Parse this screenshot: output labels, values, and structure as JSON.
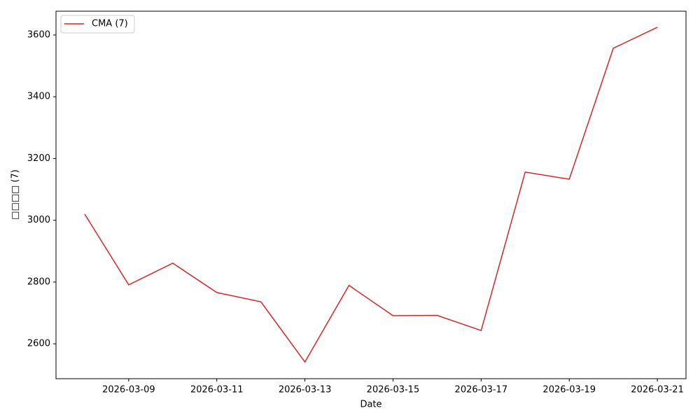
{
  "chart_data": {
    "type": "line",
    "x_label": "Date",
    "y_label": "□□□□ (7)",
    "x": [
      "2026-03-08",
      "2026-03-09",
      "2026-03-10",
      "2026-03-11",
      "2026-03-12",
      "2026-03-13",
      "2026-03-14",
      "2026-03-15",
      "2026-03-16",
      "2026-03-17",
      "2026-03-18",
      "2026-03-19",
      "2026-03-20",
      "2026-03-21"
    ],
    "series": [
      {
        "name": "CMA (7)",
        "color": "#d62728",
        "values": [
          3020,
          2791,
          2861,
          2766,
          2736,
          2541,
          2789,
          2691,
          2692,
          2643,
          3156,
          3133,
          3557,
          3625
        ]
      }
    ],
    "xlim": [
      "2026-03-07T08:24",
      "2026-03-21T15:36"
    ],
    "xticks": [
      "2026-03-09",
      "2026-03-11",
      "2026-03-13",
      "2026-03-15",
      "2026-03-17",
      "2026-03-19",
      "2026-03-21"
    ],
    "ylim": [
      2487,
      3677
    ],
    "yticks": [
      2600,
      2800,
      3000,
      3200,
      3400,
      3600
    ],
    "grid": false,
    "legend": "upper left"
  }
}
